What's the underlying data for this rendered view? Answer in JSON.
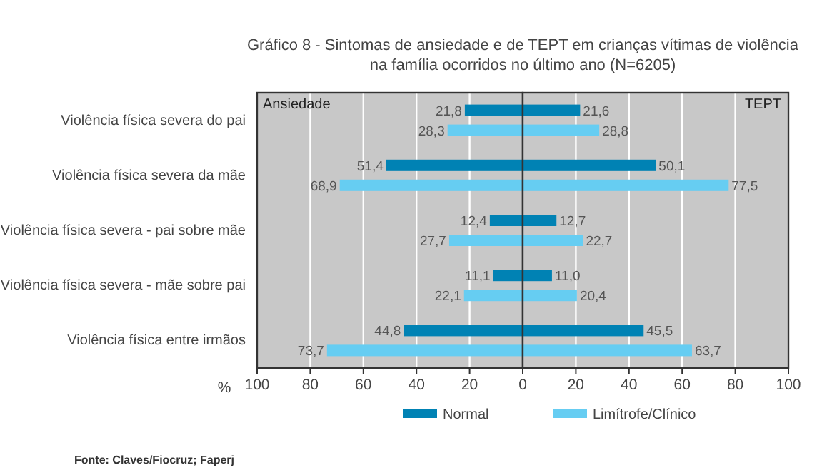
{
  "chart_data": [
    {
      "type": "bar",
      "orientation": "horizontal",
      "title": "Gráfico 8 - Sintomas de ansiedade e de TEPT em crianças vítimas de violência na família ocorridos no último ano (N=6205)",
      "xlabel": "%",
      "categories": [
        "Violência física severa do pai",
        "Violência física severa da mãe",
        "Violência física severa - pai sobre mãe",
        "Violência física severa - mãe sobre pai",
        "Violência física entre irmãos"
      ],
      "series": [
        {
          "name": "Normal",
          "color": "#0082b4",
          "values": [
            21.8,
            51.4,
            12.4,
            11.1,
            44.8
          ],
          "value_labels": [
            "21,8",
            "51,4",
            "12,4",
            "11,1",
            "44,8"
          ]
        },
        {
          "name": "Limítrofe/Clínico",
          "color": "#66cdf2",
          "values": [
            28.3,
            68.9,
            27.7,
            22.1,
            73.7
          ],
          "value_labels": [
            "28,3",
            "68,9",
            "27,7",
            "22,1",
            "73,7"
          ]
        }
      ],
      "xlim": [
        100,
        0
      ],
      "xticks": [
        100,
        80,
        60,
        40,
        20
      ],
      "grid": "x",
      "legend": "bottom",
      "annotations": [
        "Ansiedade",
        "Fonte: Claves/Fiocruz; Faperj"
      ]
    },
    {
      "type": "bar",
      "orientation": "horizontal",
      "categories": [
        null,
        null,
        null,
        null,
        null
      ],
      "series": [
        {
          "color": "#0082b4",
          "values": [
            21.6,
            50.1,
            12.7,
            11.0,
            45.5
          ],
          "value_labels": [
            "21,6",
            "50,1",
            "12,7",
            "11,0",
            "45,5"
          ]
        },
        {
          "color": "#66cdf2",
          "values": [
            28.8,
            77.5,
            22.7,
            20.4,
            63.7
          ],
          "value_labels": [
            "28,8",
            "77,5",
            "22,7",
            "20,4",
            "63,7"
          ]
        }
      ],
      "xlim": [
        0,
        100
      ],
      "xticks": [
        0,
        20,
        40,
        60,
        80,
        100
      ],
      "grid": "x",
      "annotations": [
        "TEPT"
      ]
    }
  ]
}
